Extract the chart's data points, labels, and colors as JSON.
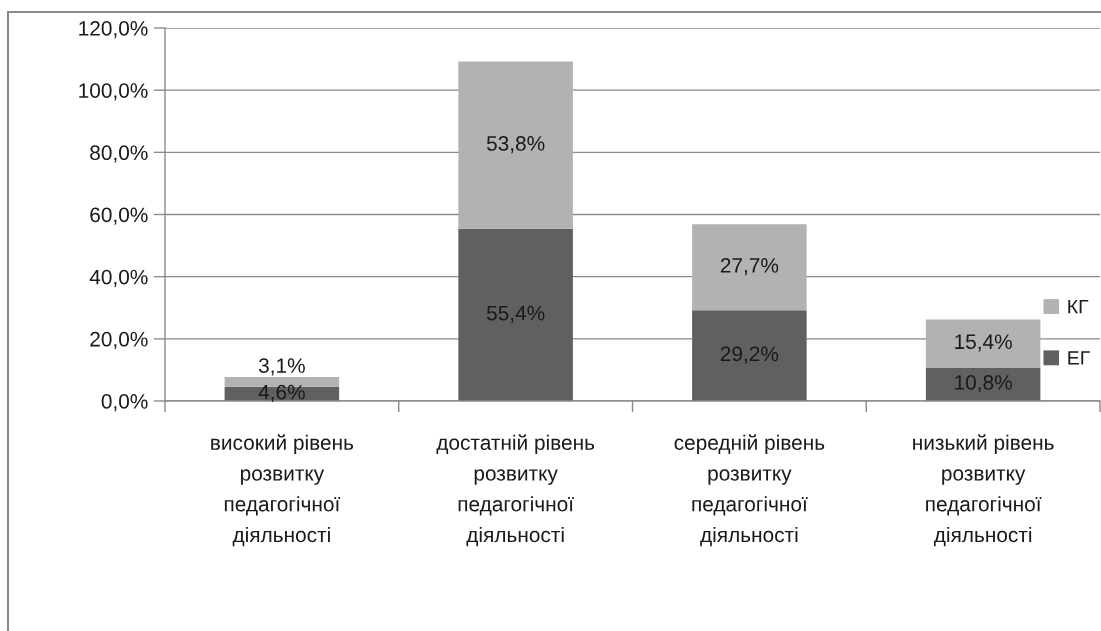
{
  "chart_data": {
    "type": "bar",
    "stacked": true,
    "categories": [
      "високий рівень\nрозвитку\nпедагогічної\nдіяльності",
      "достатній рівень\nрозвитку\nпедагогічної\nдіяльності",
      "середній рівень\nрозвитку\nпедагогічної\nдіяльності",
      "низький рівень\nрозвитку\nпедагогічної\nдіяльності"
    ],
    "series": [
      {
        "name": "ЕГ",
        "color": "#606060",
        "values": [
          4.6,
          55.4,
          29.2,
          10.8
        ],
        "value_labels": [
          "4,6%",
          "55,4%",
          "29,2%",
          "10,8%"
        ]
      },
      {
        "name": "КГ",
        "color": "#b2b2b2",
        "values": [
          3.1,
          53.8,
          27.7,
          15.4
        ],
        "value_labels": [
          "3,1%",
          "53,8%",
          "27,7%",
          "15,4%"
        ]
      }
    ],
    "ylim": [
      0,
      120
    ],
    "yticks": [
      {
        "value": 0,
        "label": "0,0%"
      },
      {
        "value": 20,
        "label": "20,0%"
      },
      {
        "value": 40,
        "label": "40,0%"
      },
      {
        "value": 60,
        "label": "60,0%"
      },
      {
        "value": 80,
        "label": "80,0%"
      },
      {
        "value": 100,
        "label": "100,0%"
      },
      {
        "value": 120,
        "label": "120,0%"
      }
    ],
    "grid": "y",
    "legend": "right"
  }
}
